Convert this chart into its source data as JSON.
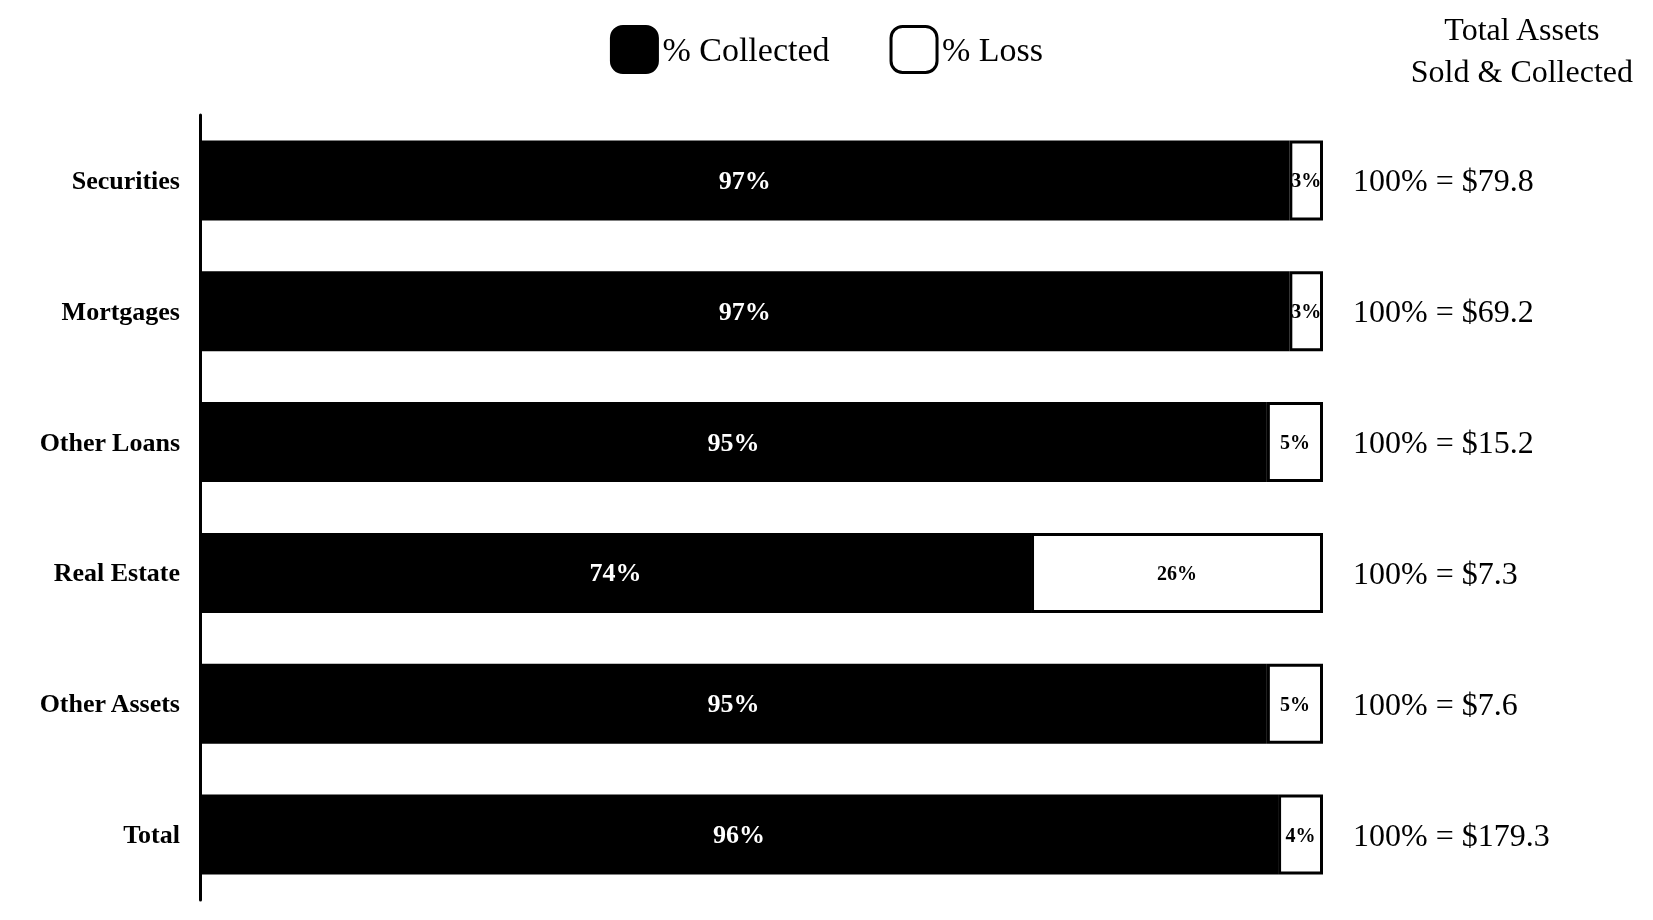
{
  "chart_data": {
    "type": "bar",
    "orientation": "horizontal",
    "stacked": true,
    "categories": [
      "Securities",
      "Mortgages",
      "Other Loans",
      "Real Estate",
      "Other Assets",
      "Total"
    ],
    "series": [
      {
        "name": "% Collected",
        "color": "#000000",
        "values": [
          97,
          97,
          95,
          74,
          95,
          96
        ],
        "value_labels": [
          "97%",
          "97%",
          "95%",
          "74%",
          "95%",
          "96%"
        ]
      },
      {
        "name": "% Loss",
        "color": "#ffffff",
        "values": [
          3,
          3,
          5,
          26,
          5,
          4
        ],
        "value_labels": [
          "3%",
          "3%",
          "5%",
          "26%",
          "5%",
          "4%"
        ]
      }
    ],
    "xlim": [
      0,
      100
    ],
    "tick_labels": "y",
    "grid": false,
    "legend": "top",
    "annotations": [
      "Total Assets\nSold & Collected",
      "100% = $79.8",
      "100% = $69.2",
      "100% = $15.2",
      "100% = $7.3",
      "100% = $7.6",
      "100% = $179.3"
    ]
  }
}
